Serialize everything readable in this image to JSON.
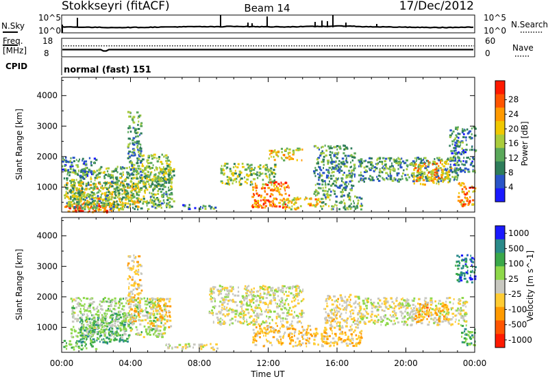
{
  "header": {
    "station": "Stokkseyri (fitACF)",
    "beam": "Beam 14",
    "date": "17/Dec/2012"
  },
  "top_panels": {
    "nsky_label": "N.Sky",
    "nsearch_label": "N.Search",
    "nsky_ticks": [
      "10^5",
      "10^0"
    ],
    "nsearch_ticks": [
      "10^5",
      "10^0"
    ],
    "freq_label_line1": "Freq.",
    "freq_label_line2": "[MHz]",
    "freq_ticks": [
      "18",
      "8"
    ],
    "nave_label": "Nave",
    "nave_ticks": [
      "60",
      "0"
    ],
    "cpid_label": "CPID",
    "cpid_value": "normal (fast) 151"
  },
  "colors": {
    "power": [
      "#1a1aff",
      "#2a55c8",
      "#2e7d5a",
      "#5aa85a",
      "#aacc3c",
      "#f0c800",
      "#ff9a00",
      "#ff5500",
      "#ff1a00"
    ],
    "velocity": [
      "#ff1a00",
      "#ff5500",
      "#ff9a00",
      "#ffcc33",
      "#c8c8c0",
      "#8ed84a",
      "#3aa84a",
      "#2a8a8a",
      "#1a1aff"
    ],
    "background": "#ffffff"
  },
  "chart_data": [
    {
      "type": "heatmap",
      "title": "",
      "xlabel": "",
      "ylabel": "Slant Range [km]",
      "x_ticks": [
        "00:00",
        "04:00",
        "08:00",
        "12:00",
        "16:00",
        "20:00",
        "00:00"
      ],
      "y_ticks": [
        "1000",
        "2000",
        "3000",
        "4000"
      ],
      "xlim_hours": [
        0,
        24
      ],
      "ylim_km": [
        180,
        4600
      ],
      "colorbar": {
        "label": "Power [dB]",
        "ticks": [
          "4",
          "8",
          "12",
          "16",
          "20",
          "24",
          "28"
        ],
        "range": [
          0,
          30
        ]
      },
      "regions": [
        {
          "t0": 0.0,
          "t1": 3.6,
          "r0": 200,
          "r1": 500,
          "v": 24
        },
        {
          "t0": 0.2,
          "t1": 4.5,
          "r0": 350,
          "r1": 1200,
          "v": 18
        },
        {
          "t0": 0.1,
          "t1": 6.5,
          "r0": 300,
          "r1": 1700,
          "v": 12
        },
        {
          "t0": 0.0,
          "t1": 2.0,
          "r0": 1400,
          "r1": 2000,
          "v": 8
        },
        {
          "t0": 3.8,
          "t1": 4.6,
          "r0": 1200,
          "r1": 3500,
          "v": 10
        },
        {
          "t0": 4.6,
          "t1": 6.4,
          "r0": 1000,
          "r1": 2100,
          "v": 14
        },
        {
          "t0": 7.0,
          "t1": 9.0,
          "r0": 300,
          "r1": 450,
          "v": 8
        },
        {
          "t0": 9.2,
          "t1": 12.4,
          "r0": 1100,
          "r1": 1800,
          "v": 14
        },
        {
          "t0": 11.0,
          "t1": 13.2,
          "r0": 350,
          "r1": 1200,
          "v": 24
        },
        {
          "t0": 12.8,
          "t1": 15.0,
          "r0": 300,
          "r1": 700,
          "v": 18
        },
        {
          "t0": 12.0,
          "t1": 14.0,
          "r0": 1900,
          "r1": 2300,
          "v": 18
        },
        {
          "t0": 14.6,
          "t1": 17.0,
          "r0": 700,
          "r1": 2400,
          "v": 10
        },
        {
          "t0": 15.0,
          "t1": 17.4,
          "r0": 300,
          "r1": 700,
          "v": 12
        },
        {
          "t0": 17.2,
          "t1": 23.0,
          "r0": 1200,
          "r1": 2000,
          "v": 10
        },
        {
          "t0": 20.4,
          "t1": 22.6,
          "r0": 1100,
          "r1": 1900,
          "v": 20
        },
        {
          "t0": 23.0,
          "t1": 24.0,
          "r0": 400,
          "r1": 1200,
          "v": 22
        },
        {
          "t0": 22.5,
          "t1": 24.0,
          "r0": 1500,
          "r1": 3000,
          "v": 8
        }
      ]
    },
    {
      "type": "heatmap",
      "title": "",
      "xlabel": "Time UT",
      "ylabel": "Slant Range [km]",
      "x_ticks": [
        "00:00",
        "04:00",
        "08:00",
        "12:00",
        "16:00",
        "20:00",
        "00:00"
      ],
      "y_ticks": [
        "1000",
        "2000",
        "3000",
        "4000"
      ],
      "xlim_hours": [
        0,
        24
      ],
      "ylim_km": [
        180,
        4600
      ],
      "colorbar": {
        "label": "Velocity [m s^-1]",
        "ticks": [
          "1000",
          "500",
          "100",
          "25",
          "-25",
          "-100",
          "-500",
          "-1000"
        ],
        "range": [
          -1200,
          1200
        ]
      },
      "regions": [
        {
          "t0": 0.0,
          "t1": 2.0,
          "r0": 300,
          "r1": 600,
          "v": 400
        },
        {
          "t0": 1.0,
          "t1": 4.0,
          "r0": 500,
          "r1": 1500,
          "v": 600
        },
        {
          "t0": 0.5,
          "t1": 6.0,
          "r0": 700,
          "r1": 2000,
          "v": 150
        },
        {
          "t0": 3.8,
          "t1": 4.6,
          "r0": 1200,
          "r1": 3400,
          "v": -200
        },
        {
          "t0": 5.0,
          "t1": 6.3,
          "r0": 1000,
          "r1": 2000,
          "v": -300
        },
        {
          "t0": 6.0,
          "t1": 9.0,
          "r0": 300,
          "r1": 500,
          "v": -50
        },
        {
          "t0": 8.5,
          "t1": 14.0,
          "r0": 1100,
          "r1": 2400,
          "v": 0
        },
        {
          "t0": 11.0,
          "t1": 14.5,
          "r0": 400,
          "r1": 1100,
          "v": -300
        },
        {
          "t0": 14.6,
          "t1": 17.4,
          "r0": 400,
          "r1": 1000,
          "v": -300
        },
        {
          "t0": 15.2,
          "t1": 17.2,
          "r0": 1000,
          "r1": 2100,
          "v": -150
        },
        {
          "t0": 17.2,
          "t1": 23.5,
          "r0": 1100,
          "r1": 2000,
          "v": 0
        },
        {
          "t0": 20.4,
          "t1": 22.4,
          "r0": 1200,
          "r1": 1800,
          "v": -400
        },
        {
          "t0": 23.2,
          "t1": 24.0,
          "r0": 400,
          "r1": 1100,
          "v": 500
        },
        {
          "t0": 22.8,
          "t1": 24.0,
          "r0": 2500,
          "r1": 3400,
          "v": 800
        }
      ]
    }
  ]
}
